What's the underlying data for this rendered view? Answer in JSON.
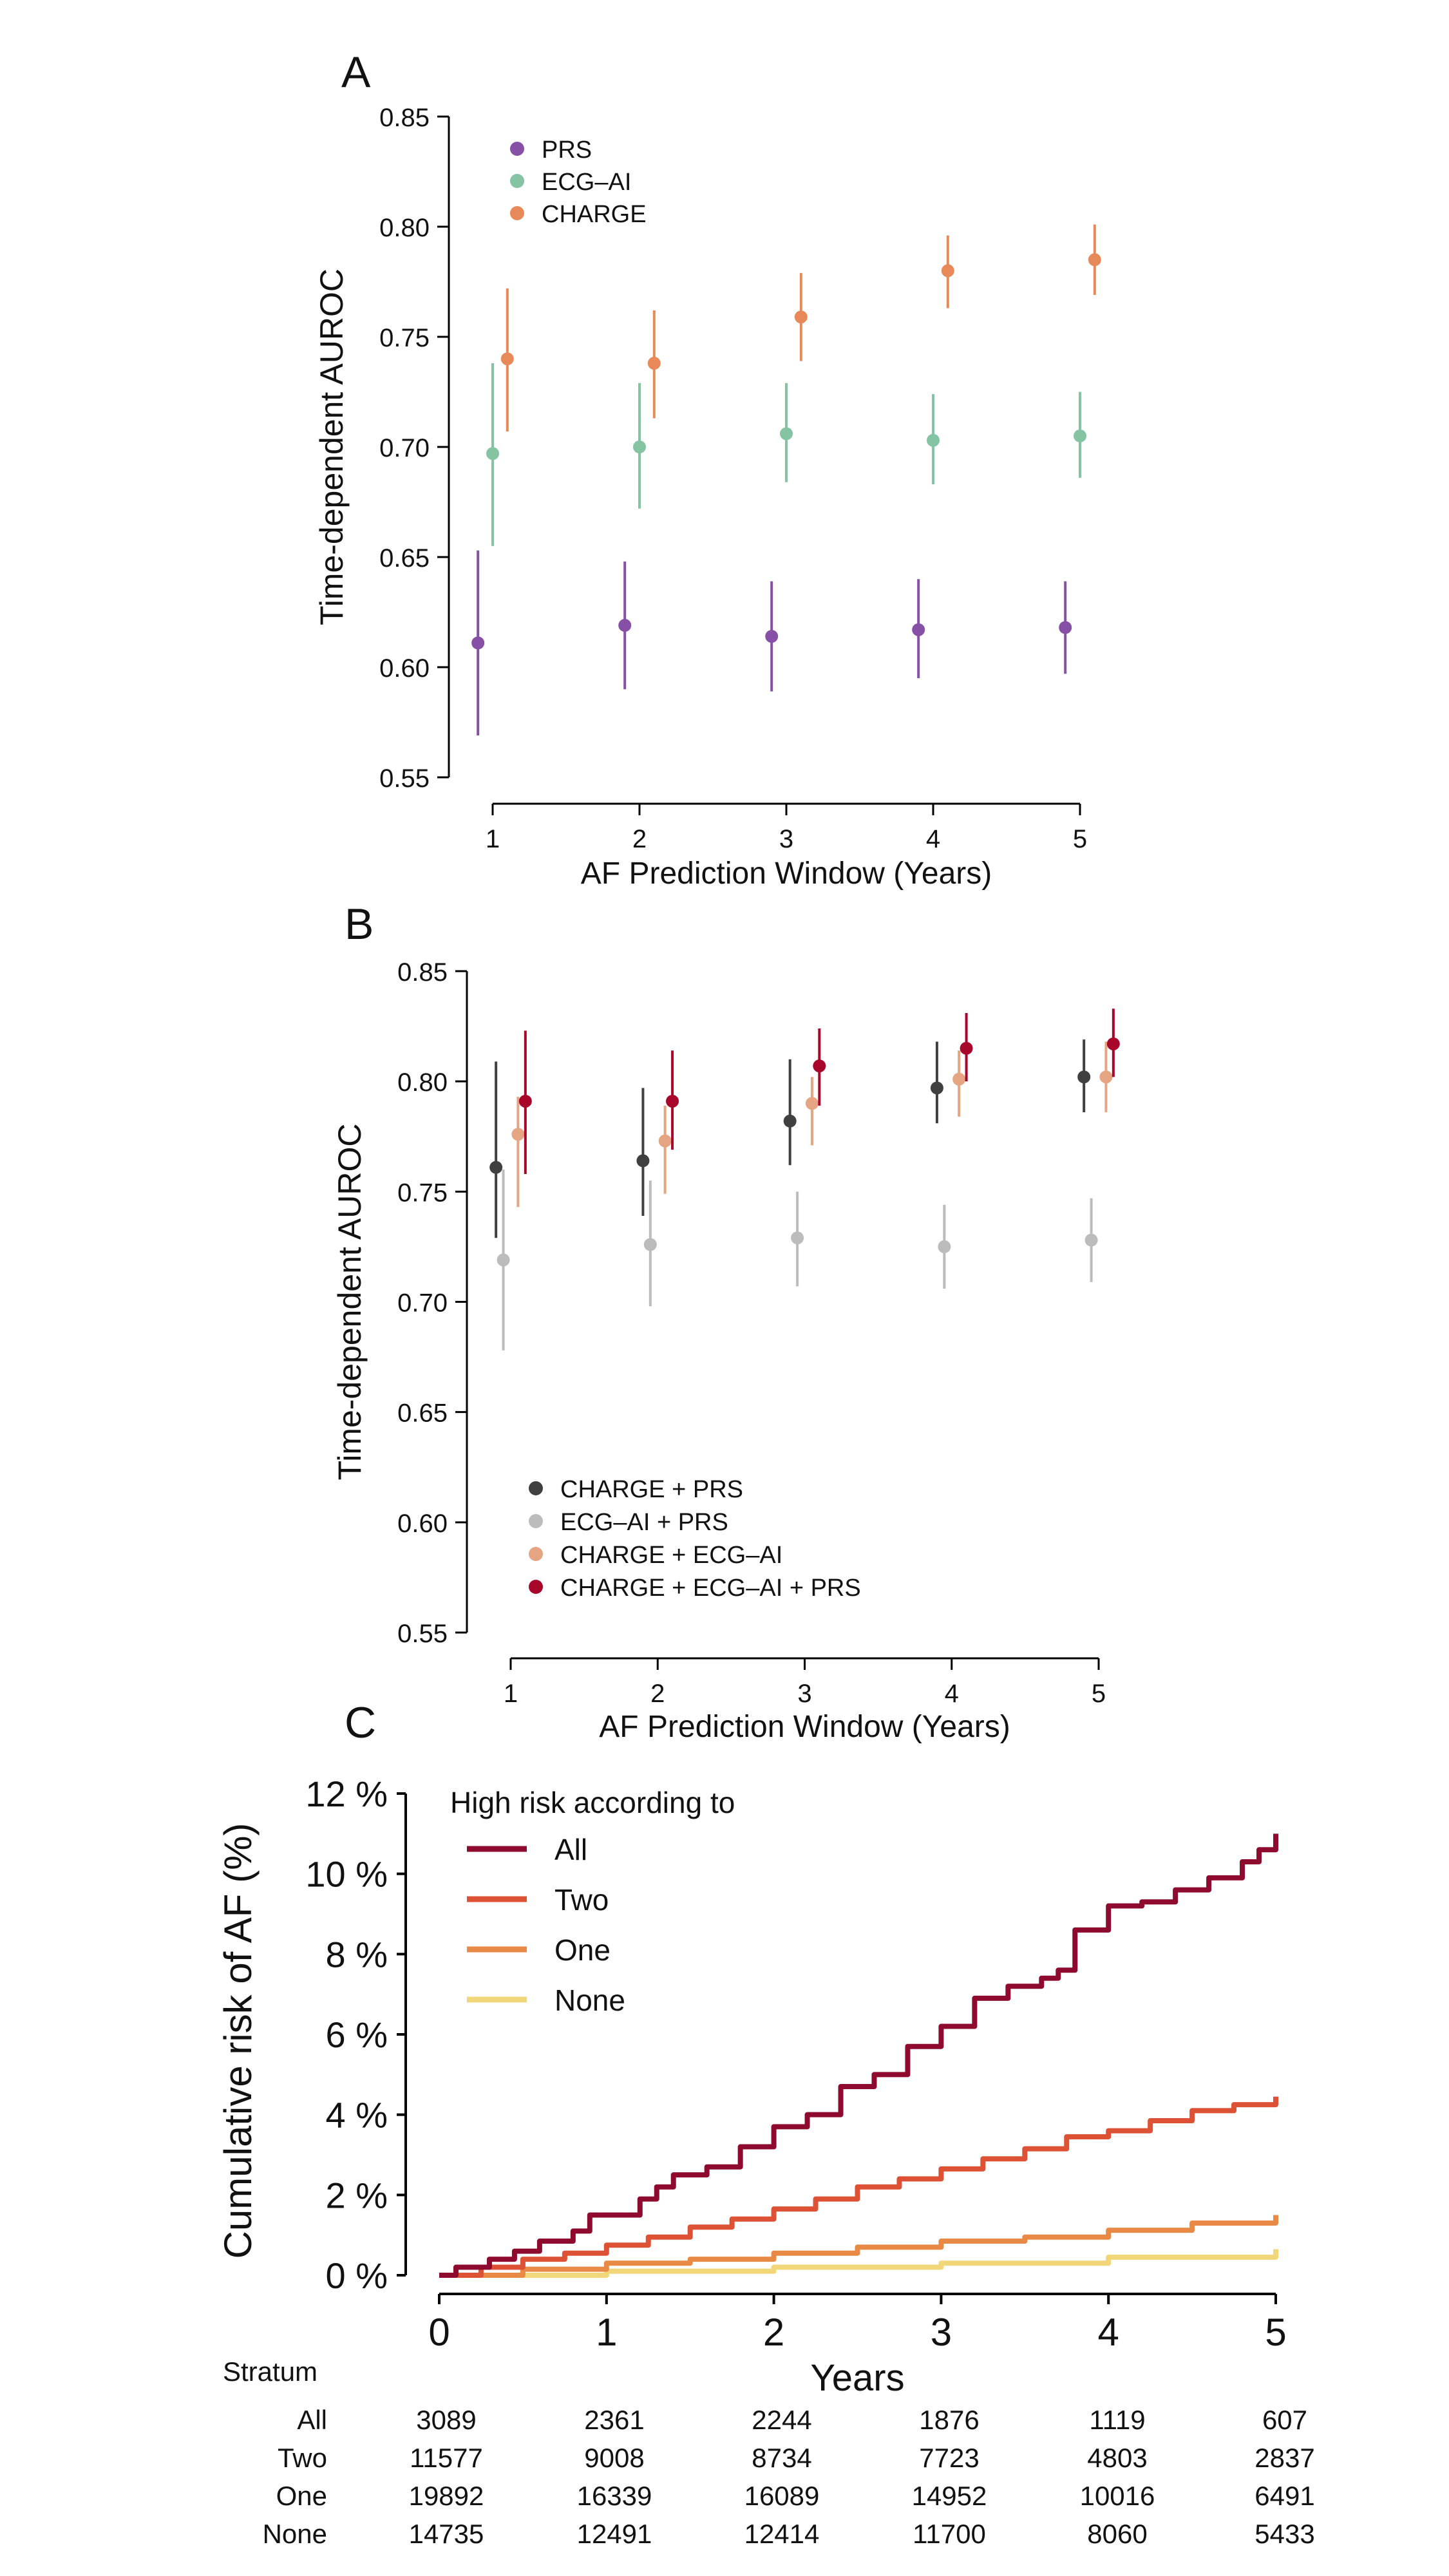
{
  "panels": {
    "a": "A",
    "b": "B",
    "c": "C"
  },
  "chart_data": [
    {
      "type": "scatter",
      "panel": "A",
      "title": "",
      "xlabel": "AF Prediction Window (Years)",
      "ylabel": "Time-dependent AUROC",
      "x": [
        1,
        2,
        3,
        4,
        5
      ],
      "xticks": [
        "1",
        "2",
        "3",
        "4",
        "5"
      ],
      "ylim": [
        0.55,
        0.85
      ],
      "yticks": [
        "0.55",
        "0.60",
        "0.65",
        "0.70",
        "0.75",
        "0.80",
        "0.85"
      ],
      "legend_position": "top-left",
      "series": [
        {
          "name": "PRS",
          "color": "#8650a6",
          "offset": -0.1,
          "values": [
            0.611,
            0.619,
            0.614,
            0.617,
            0.618
          ],
          "lower": [
            0.569,
            0.59,
            0.589,
            0.595,
            0.597
          ],
          "upper": [
            0.653,
            0.648,
            0.639,
            0.64,
            0.639
          ]
        },
        {
          "name": "ECG–AI",
          "color": "#85c4a3",
          "offset": 0,
          "values": [
            0.697,
            0.7,
            0.706,
            0.703,
            0.705
          ],
          "lower": [
            0.655,
            0.672,
            0.684,
            0.683,
            0.686
          ],
          "upper": [
            0.738,
            0.729,
            0.729,
            0.724,
            0.725
          ]
        },
        {
          "name": "CHARGE",
          "color": "#e8895a",
          "offset": 0.1,
          "values": [
            0.74,
            0.738,
            0.759,
            0.78,
            0.785
          ],
          "lower": [
            0.707,
            0.713,
            0.739,
            0.763,
            0.769
          ],
          "upper": [
            0.772,
            0.762,
            0.779,
            0.796,
            0.801
          ]
        }
      ]
    },
    {
      "type": "scatter",
      "panel": "B",
      "title": "",
      "xlabel": "AF Prediction Window (Years)",
      "ylabel": "Time-dependent AUROC",
      "x": [
        1,
        2,
        3,
        4,
        5
      ],
      "xticks": [
        "1",
        "2",
        "3",
        "4",
        "5"
      ],
      "ylim": [
        0.55,
        0.85
      ],
      "yticks": [
        "0.55",
        "0.60",
        "0.65",
        "0.70",
        "0.75",
        "0.80",
        "0.85"
      ],
      "legend_position": "bottom-left",
      "series": [
        {
          "name": "CHARGE + PRS",
          "color": "#404040",
          "offset": -0.1,
          "values": [
            0.761,
            0.764,
            0.782,
            0.797,
            0.802
          ],
          "lower": [
            0.729,
            0.739,
            0.762,
            0.781,
            0.786
          ],
          "upper": [
            0.809,
            0.797,
            0.81,
            0.818,
            0.819
          ]
        },
        {
          "name": "ECG–AI + PRS",
          "color": "#bcbcbc",
          "offset": -0.05,
          "values": [
            0.719,
            0.726,
            0.729,
            0.725,
            0.728
          ],
          "lower": [
            0.678,
            0.698,
            0.707,
            0.706,
            0.709
          ],
          "upper": [
            0.76,
            0.755,
            0.75,
            0.744,
            0.747
          ]
        },
        {
          "name": "CHARGE + ECG–AI",
          "color": "#e6a582",
          "offset": 0.05,
          "values": [
            0.776,
            0.773,
            0.79,
            0.801,
            0.802
          ],
          "lower": [
            0.743,
            0.749,
            0.771,
            0.784,
            0.786
          ],
          "upper": [
            0.793,
            0.789,
            0.802,
            0.814,
            0.818
          ]
        },
        {
          "name": "CHARGE + ECG–AI + PRS",
          "color": "#a8062a",
          "offset": 0.1,
          "values": [
            0.791,
            0.791,
            0.807,
            0.815,
            0.817
          ],
          "lower": [
            0.758,
            0.769,
            0.789,
            0.8,
            0.802
          ],
          "upper": [
            0.823,
            0.814,
            0.824,
            0.831,
            0.833
          ]
        }
      ]
    },
    {
      "type": "line",
      "panel": "C",
      "title": "",
      "xlabel": "Years",
      "ylabel": "Cumulative risk of AF (%)",
      "xlim": [
        0,
        5
      ],
      "ylim": [
        0,
        12
      ],
      "xticks": [
        "0",
        "1",
        "2",
        "3",
        "4",
        "5"
      ],
      "yticks": [
        "0 %",
        "2 %",
        "4 %",
        "6 %",
        "8 %",
        "10 %",
        "12 %"
      ],
      "legend_title": "High risk according to",
      "legend_position": "top-left",
      "series": [
        {
          "name": "All",
          "color": "#8e0b2f",
          "x": [
            0,
            0.1,
            0.3,
            0.45,
            0.6,
            0.8,
            0.9,
            1.2,
            1.3,
            1.4,
            1.6,
            1.8,
            2.0,
            2.2,
            2.4,
            2.6,
            2.8,
            3.0,
            3.2,
            3.4,
            3.6,
            3.7,
            3.8,
            4.0,
            4.2,
            4.4,
            4.6,
            4.8,
            4.9,
            5.0
          ],
          "y": [
            0,
            0.2,
            0.4,
            0.6,
            0.85,
            1.1,
            1.5,
            1.9,
            2.2,
            2.5,
            2.7,
            3.2,
            3.7,
            4.0,
            4.7,
            5.0,
            5.7,
            6.2,
            6.9,
            7.2,
            7.4,
            7.6,
            8.6,
            9.2,
            9.3,
            9.6,
            9.9,
            10.3,
            10.6,
            11.0
          ]
        },
        {
          "name": "Two",
          "color": "#dd5234",
          "x": [
            0,
            0.25,
            0.5,
            0.75,
            1,
            1.25,
            1.5,
            1.75,
            2,
            2.25,
            2.5,
            2.75,
            3,
            3.25,
            3.5,
            3.75,
            4,
            4.25,
            4.5,
            4.75,
            5
          ],
          "y": [
            0,
            0.2,
            0.4,
            0.55,
            0.75,
            0.95,
            1.2,
            1.4,
            1.65,
            1.9,
            2.2,
            2.4,
            2.65,
            2.9,
            3.15,
            3.45,
            3.6,
            3.85,
            4.1,
            4.25,
            4.45
          ]
        },
        {
          "name": "One",
          "color": "#e88a45",
          "x": [
            0,
            0.5,
            1,
            1.5,
            2,
            2.5,
            3,
            3.5,
            4,
            4.5,
            5
          ],
          "y": [
            0,
            0.15,
            0.3,
            0.4,
            0.55,
            0.7,
            0.85,
            0.95,
            1.12,
            1.3,
            1.5
          ]
        },
        {
          "name": "None",
          "color": "#f2d77a",
          "x": [
            0,
            1,
            2,
            3,
            4,
            5
          ],
          "y": [
            0,
            0.1,
            0.2,
            0.3,
            0.45,
            0.65
          ]
        }
      ],
      "risk_table": {
        "header": "Stratum",
        "rows": [
          {
            "label": "All",
            "values": [
              "3089",
              "2361",
              "2244",
              "1876",
              "1119",
              "607"
            ]
          },
          {
            "label": "Two",
            "values": [
              "11577",
              "9008",
              "8734",
              "7723",
              "4803",
              "2837"
            ]
          },
          {
            "label": "One",
            "values": [
              "19892",
              "16339",
              "16089",
              "14952",
              "10016",
              "6491"
            ]
          },
          {
            "label": "None",
            "values": [
              "14735",
              "12491",
              "12414",
              "11700",
              "8060",
              "5433"
            ]
          }
        ]
      }
    }
  ]
}
